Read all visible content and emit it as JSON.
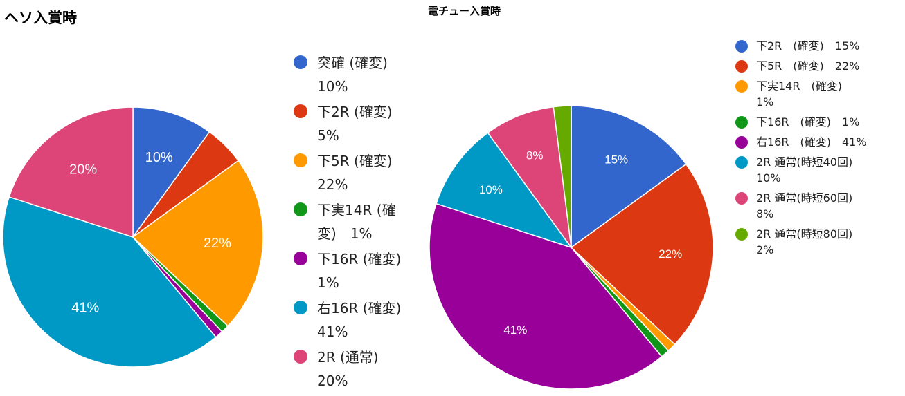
{
  "charts_title_left": "ヘソ入賞時",
  "charts_title_right": "電チュー入賞時",
  "chart_data": [
    {
      "type": "pie",
      "title": "ヘソ入賞時",
      "legend_position": "right",
      "slices": [
        {
          "label": "突確 (確変)",
          "value": 10,
          "display": "10%",
          "color": "#3366cc",
          "legend_lines": [
            "突確 (確変)",
            "10%"
          ]
        },
        {
          "label": "下2R (確変)",
          "value": 5,
          "display": "5%",
          "color": "#dc3912",
          "legend_lines": [
            "下2R (確変)",
            "5%"
          ]
        },
        {
          "label": "下5R (確変)",
          "value": 22,
          "display": "22%",
          "color": "#ff9900",
          "legend_lines": [
            "下5R (確変)",
            "22%"
          ]
        },
        {
          "label": "下実14R (確変)",
          "value": 1,
          "display": "1%",
          "color": "#109618",
          "legend_lines": [
            "下実14R (確",
            "変)　1%"
          ]
        },
        {
          "label": "下16R (確変)",
          "value": 1,
          "display": "1%",
          "color": "#990099",
          "legend_lines": [
            "下16R (確変)",
            "1%"
          ]
        },
        {
          "label": "右16R (確変)",
          "value": 41,
          "display": "41%",
          "color": "#0099c6",
          "legend_lines": [
            "右16R (確変)",
            "41%"
          ]
        },
        {
          "label": "2R (通常)",
          "value": 20,
          "display": "20%",
          "color": "#dd4477",
          "legend_lines": [
            "2R (通常)",
            "20%"
          ]
        }
      ]
    },
    {
      "type": "pie",
      "title": "電チュー入賞時",
      "legend_position": "right",
      "slices": [
        {
          "label": "下2R　(確変)",
          "value": 15,
          "display": "15%",
          "color": "#3366cc",
          "legend_lines": [
            "下2R　(確変)　15%"
          ]
        },
        {
          "label": "下5R　(確変)",
          "value": 22,
          "display": "22%",
          "color": "#dc3912",
          "legend_lines": [
            "下5R　(確変)　22%"
          ]
        },
        {
          "label": "下実14R　(確変)",
          "value": 1,
          "display": "1%",
          "color": "#ff9900",
          "legend_lines": [
            "下実14R　(確変)",
            "1%"
          ]
        },
        {
          "label": "下16R　(確変)",
          "value": 1,
          "display": "1%",
          "color": "#109618",
          "legend_lines": [
            "下16R　(確変)　1%"
          ]
        },
        {
          "label": "右16R　(確変)",
          "value": 41,
          "display": "41%",
          "color": "#990099",
          "legend_lines": [
            "右16R　(確変)　41%"
          ]
        },
        {
          "label": "2R 通常(時短40回)",
          "value": 10,
          "display": "10%",
          "color": "#0099c6",
          "legend_lines": [
            "2R 通常(時短40回)",
            "10%"
          ]
        },
        {
          "label": "2R 通常(時短60回)",
          "value": 8,
          "display": "8%",
          "color": "#dd4477",
          "legend_lines": [
            "2R 通常(時短60回)",
            "8%"
          ]
        },
        {
          "label": "2R 通常(時短80回)",
          "value": 2,
          "display": "2%",
          "color": "#66aa00",
          "legend_lines": [
            "2R 通常(時短80回)",
            "2%"
          ]
        }
      ]
    }
  ]
}
